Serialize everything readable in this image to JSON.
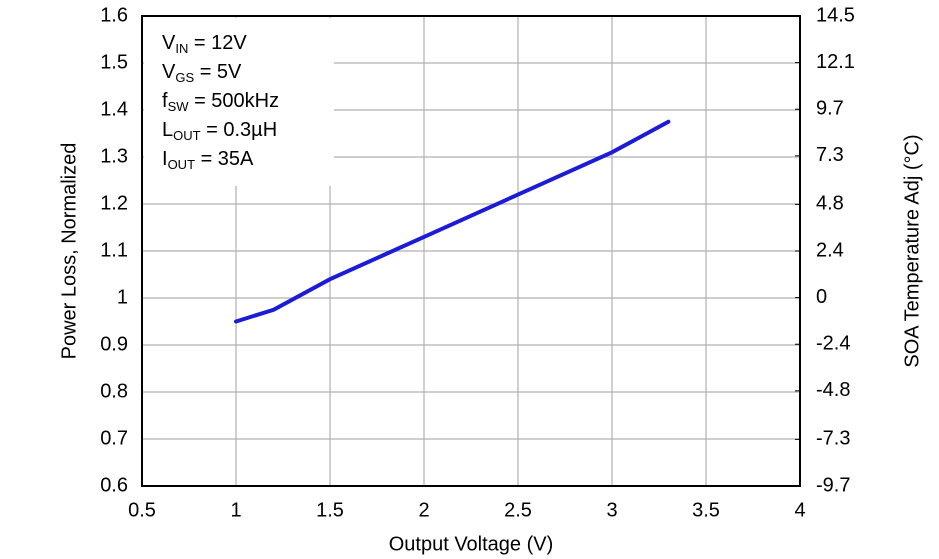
{
  "chart_data": {
    "type": "line",
    "x_label": "Output Voltage (V)",
    "y_label": "Power Loss, Normalized",
    "y2_label": "SOA Temperature Adj (°C)",
    "annotations": [
      {
        "main": "V",
        "sub": "IN",
        "rest": " = 12V"
      },
      {
        "main": "V",
        "sub": "GS",
        "rest": " = 5V"
      },
      {
        "main": "f",
        "sub": "SW",
        "rest": " = 500kHz"
      },
      {
        "main": "L",
        "sub": "OUT",
        "rest": " = 0.3µH"
      },
      {
        "main": "I",
        "sub": "OUT",
        "rest": " = 35A"
      }
    ],
    "x": [
      1,
      1.2,
      1.5,
      2,
      2.5,
      3,
      3.3
    ],
    "series": [
      {
        "name": "Power Loss",
        "color": "#1c1cd6",
        "values": [
          0.95,
          0.975,
          1.04,
          1.13,
          1.22,
          1.31,
          1.375
        ]
      }
    ],
    "xlim": [
      0.5,
      4
    ],
    "xticks": [
      0.5,
      1,
      1.5,
      2,
      2.5,
      3,
      3.5,
      4
    ],
    "ylim": [
      0.6,
      1.6
    ],
    "yticks": [
      0.6,
      0.7,
      0.8,
      0.9,
      1,
      1.1,
      1.2,
      1.3,
      1.4,
      1.5,
      1.6
    ],
    "y2lim": [
      -9.7,
      14.5
    ],
    "y2ticks": [
      -9.7,
      -7.3,
      -4.8,
      -2.4,
      0,
      2.4,
      4.8,
      7.3,
      9.7,
      12.1,
      14.5
    ],
    "grid": true
  }
}
